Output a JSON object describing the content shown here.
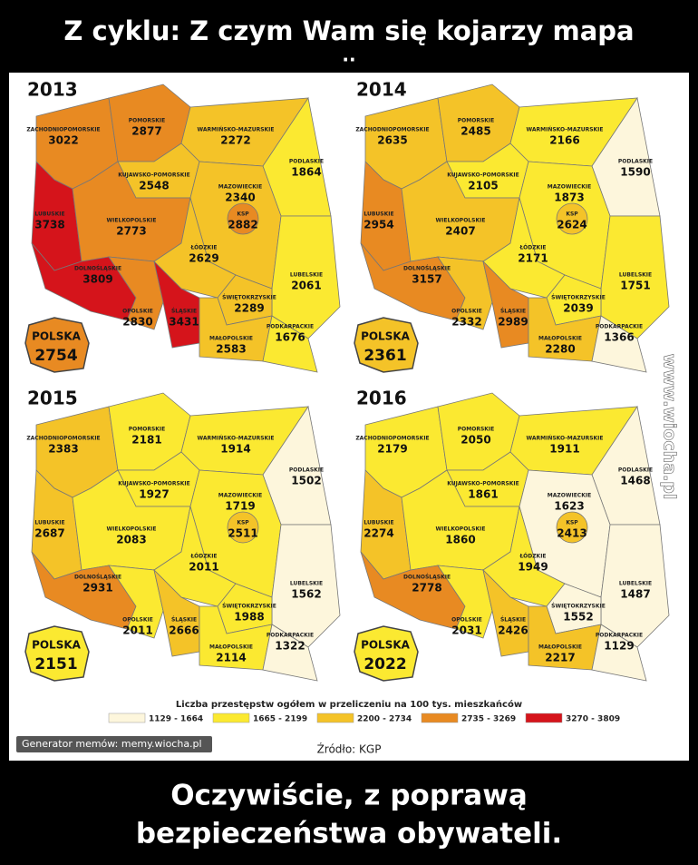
{
  "header": {
    "title": "Z cyklu: Z czym Wam się kojarzy mapa",
    "subtitle": ".."
  },
  "region_names": [
    "ZACHODNIOPOMORSKIE",
    "POMORSKIE",
    "WARMIŃSKO-MAZURSKIE",
    "PODLASKIE",
    "KUJAWSKO-POMORSKIE",
    "MAZOWIECKIE",
    "KSP",
    "LUBUSKIE",
    "WIELKOPOLSKIE",
    "ŁÓDZKIE",
    "LUBELSKIE",
    "DOLNOŚLĄSKIE",
    "OPOLSKIE",
    "ŚLĄSKIE",
    "ŚWIĘTOKRZYSKIE",
    "MAŁOPOLSKIE",
    "PODKARPACKIE"
  ],
  "total_label": "POLSKA",
  "maps": [
    {
      "year": 2013,
      "values": [
        3022,
        2877,
        2272,
        1864,
        2548,
        2340,
        2882,
        3738,
        2773,
        2629,
        2061,
        3809,
        2830,
        3431,
        2289,
        2583,
        1676
      ],
      "total": 2754
    },
    {
      "year": 2014,
      "values": [
        2635,
        2485,
        2166,
        1590,
        2105,
        1873,
        2624,
        2954,
        2407,
        2171,
        1751,
        3157,
        2332,
        2989,
        2039,
        2280,
        1366
      ],
      "total": 2361
    },
    {
      "year": 2015,
      "values": [
        2383,
        2181,
        1914,
        1502,
        1927,
        1719,
        2511,
        2687,
        2083,
        2011,
        1562,
        2931,
        2011,
        2666,
        1988,
        2114,
        1322
      ],
      "total": 2151
    },
    {
      "year": 2016,
      "values": [
        2179,
        2050,
        1911,
        1468,
        1861,
        1623,
        2413,
        2274,
        1860,
        1949,
        1487,
        2778,
        2031,
        2426,
        1552,
        2217,
        1129
      ],
      "total": 2022
    }
  ],
  "legend": {
    "title": "Liczba przestępstw ogółem w przeliczeniu na 100 tys. mieszkańców",
    "items": [
      {
        "label": "1129 - 1664",
        "color": "#fdf6dc"
      },
      {
        "label": "1665 - 2199",
        "color": "#fbe931"
      },
      {
        "label": "2200 - 2734",
        "color": "#f4c328"
      },
      {
        "label": "2735 - 3269",
        "color": "#e88a22"
      },
      {
        "label": "3270 - 3809",
        "color": "#d5141b"
      }
    ]
  },
  "watermark": "Generator memów: memy.wiocha.pl",
  "source": "Źródło: KGP",
  "side_text": "www.wiocha.pl",
  "caption": [
    "Oczywiście, z poprawą",
    "bezpieczeństwa obywateli."
  ]
}
